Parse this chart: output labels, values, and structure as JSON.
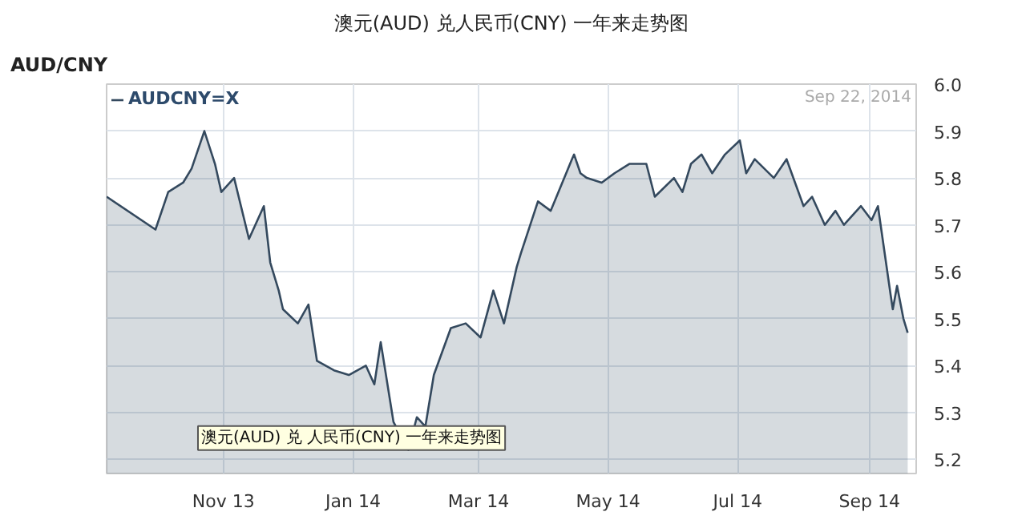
{
  "chart_data": {
    "type": "area",
    "title": "澳元(AUD) 兑人民币(CNY) 一年来走势图",
    "subtitle": "AUD/CNY",
    "annotations": [
      "Sep 22, 2014",
      "澳元(AUD) 兑 人民币(CNY) 一年来走势图"
    ],
    "x": [
      "2013-09-07",
      "2013-09-30",
      "2013-10-06",
      "2013-10-13",
      "2013-10-17",
      "2013-10-23",
      "2013-10-28",
      "2013-10-31",
      "2013-11-06",
      "2013-11-13",
      "2013-11-20",
      "2013-11-23",
      "2013-11-27",
      "2013-11-29",
      "2013-12-06",
      "2013-12-11",
      "2013-12-15",
      "2013-12-23",
      "2013-12-30",
      "2014-01-07",
      "2014-01-11",
      "2014-01-14",
      "2014-01-20",
      "2014-01-27",
      "2014-01-31",
      "2014-02-04",
      "2014-02-08",
      "2014-02-16",
      "2014-02-23",
      "2014-03-02",
      "2014-03-08",
      "2014-03-13",
      "2014-03-19",
      "2014-03-21",
      "2014-03-29",
      "2014-04-04",
      "2014-04-14",
      "2014-04-15",
      "2014-04-18",
      "2014-04-21",
      "2014-04-28",
      "2014-05-04",
      "2014-05-11",
      "2014-05-19",
      "2014-05-23",
      "2014-06-01",
      "2014-06-05",
      "2014-06-09",
      "2014-06-14",
      "2014-06-19",
      "2014-06-25",
      "2014-07-02",
      "2014-07-05",
      "2014-07-09",
      "2014-07-18",
      "2014-07-24",
      "2014-08-01",
      "2014-08-05",
      "2014-08-11",
      "2014-08-16",
      "2014-08-20",
      "2014-08-28",
      "2014-09-02",
      "2014-09-05",
      "2014-09-11",
      "2014-09-12",
      "2014-09-14",
      "2014-09-17",
      "2014-09-19"
    ],
    "series": [
      {
        "name": "AUDCNY=X",
        "color": "#34495e",
        "values": [
          5.76,
          5.69,
          5.77,
          5.79,
          5.82,
          5.9,
          5.83,
          5.77,
          5.8,
          5.67,
          5.74,
          5.62,
          5.56,
          5.52,
          5.49,
          5.53,
          5.41,
          5.39,
          5.38,
          5.4,
          5.36,
          5.45,
          5.28,
          5.22,
          5.29,
          5.27,
          5.38,
          5.48,
          5.49,
          5.46,
          5.56,
          5.49,
          5.61,
          5.64,
          5.75,
          5.73,
          5.84,
          5.85,
          5.81,
          5.8,
          5.79,
          5.81,
          5.83,
          5.83,
          5.76,
          5.8,
          5.77,
          5.83,
          5.85,
          5.81,
          5.85,
          5.88,
          5.81,
          5.84,
          5.8,
          5.84,
          5.74,
          5.76,
          5.7,
          5.73,
          5.7,
          5.74,
          5.71,
          5.74,
          5.55,
          5.52,
          5.57,
          5.5,
          5.47
        ]
      }
    ],
    "xlim": [
      "2013-09-07",
      "2014-09-23"
    ],
    "ylim": [
      5.17,
      6.0
    ],
    "xticks": [
      {
        "value": "2013-11-01",
        "label": "Nov 13"
      },
      {
        "value": "2014-01-01",
        "label": "Jan 14"
      },
      {
        "value": "2014-03-01",
        "label": "Mar 14"
      },
      {
        "value": "2014-05-01",
        "label": "May 14"
      },
      {
        "value": "2014-07-01",
        "label": "Jul 14"
      },
      {
        "value": "2014-09-01",
        "label": "Sep 14"
      }
    ],
    "yticks": [
      {
        "value": 5.2,
        "label": "5.2"
      },
      {
        "value": 5.3,
        "label": "5.3"
      },
      {
        "value": 5.4,
        "label": "5.4"
      },
      {
        "value": 5.5,
        "label": "5.5"
      },
      {
        "value": 5.6,
        "label": "5.6"
      },
      {
        "value": 5.7,
        "label": "5.7"
      },
      {
        "value": 5.8,
        "label": "5.8"
      },
      {
        "value": 5.9,
        "label": "5.9"
      },
      {
        "value": 6.0,
        "label": "6.0"
      }
    ],
    "grid": true,
    "legend": "top left"
  }
}
